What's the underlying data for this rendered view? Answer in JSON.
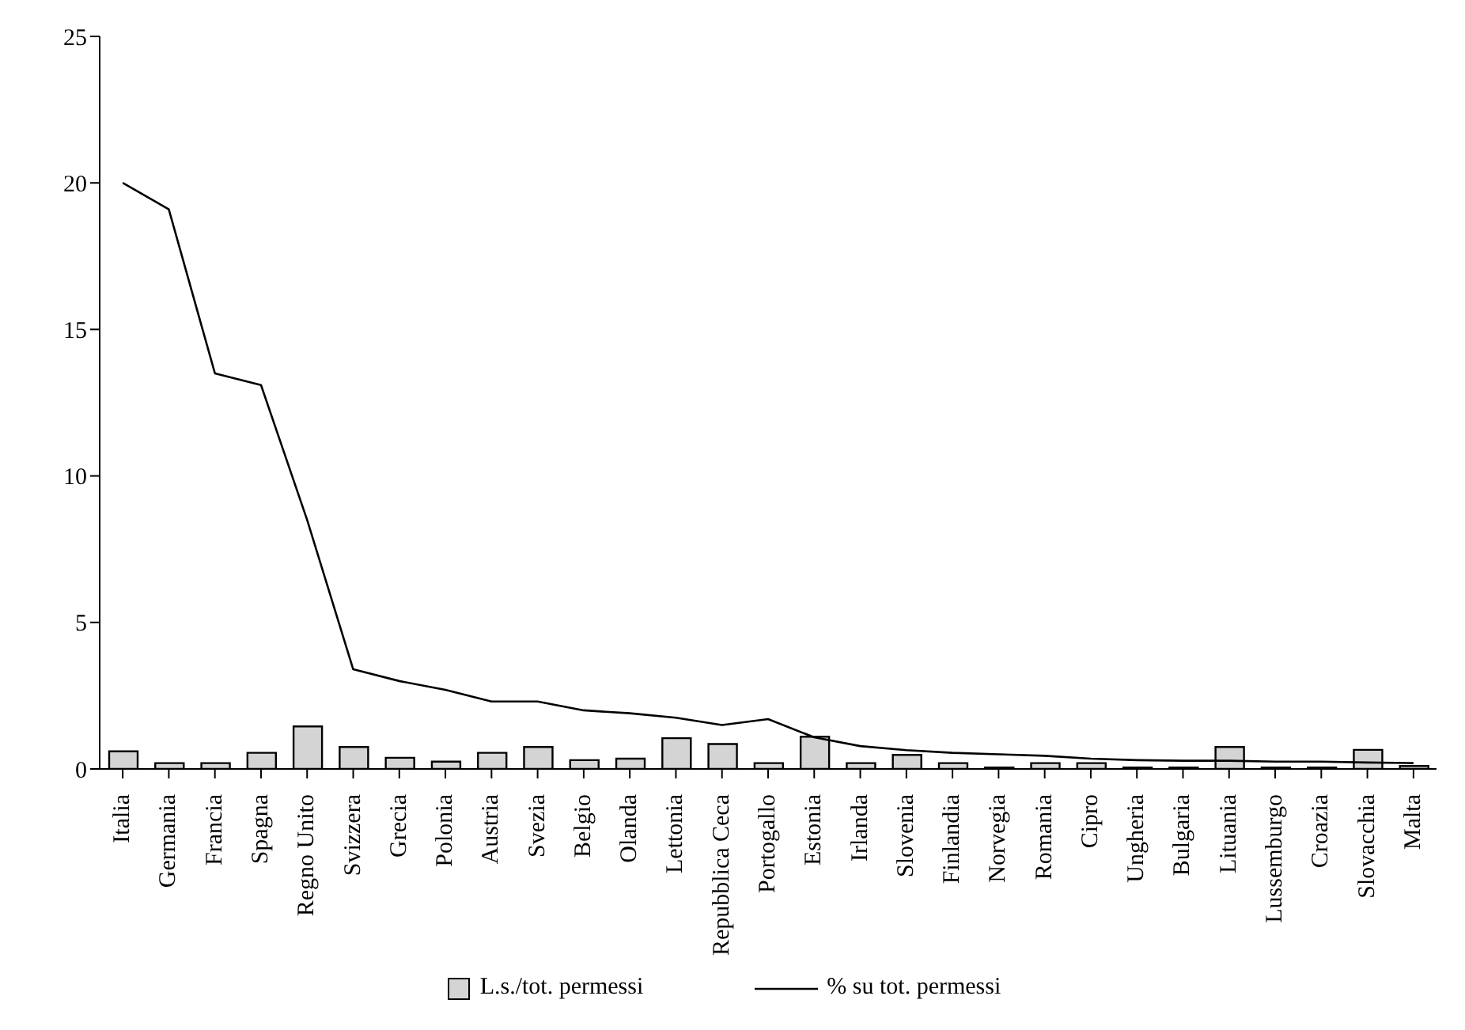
{
  "chart_data": {
    "type": "bar",
    "categories": [
      "Italia",
      "Germania",
      "Francia",
      "Spagna",
      "Regno Unito",
      "Svizzera",
      "Grecia",
      "Polonia",
      "Austria",
      "Svezia",
      "Belgio",
      "Olanda",
      "Lettonia",
      "Repubblica Ceca",
      "Portogallo",
      "Estonia",
      "Irlanda",
      "Slovenia",
      "Finlandia",
      "Norvegia",
      "Romania",
      "Cipro",
      "Ungheria",
      "Bulgaria",
      "Lituania",
      "Lussemburgo",
      "Croazia",
      "Slovacchia",
      "Malta"
    ],
    "series": [
      {
        "name": "L.s./tot. permessi",
        "color": "#d4d4d4",
        "values": [
          0.6,
          0.2,
          0.2,
          0.55,
          1.45,
          0.75,
          0.38,
          0.25,
          0.55,
          0.75,
          0.3,
          0.35,
          1.05,
          0.85,
          0.2,
          1.1,
          0.2,
          0.48,
          0.2,
          0.05,
          0.2,
          0.2,
          0.05,
          0.05,
          0.75,
          0.05,
          0.05,
          0.65,
          0.1
        ]
      },
      {
        "name": "% su tot. permessi",
        "type": "line",
        "color": "#000000",
        "values": [
          20,
          19.1,
          13.5,
          13.1,
          8.5,
          3.4,
          3.0,
          2.7,
          2.3,
          2.3,
          2.0,
          1.9,
          1.75,
          1.5,
          1.7,
          1.08,
          0.78,
          0.64,
          0.55,
          0.5,
          0.45,
          0.35,
          0.3,
          0.28,
          0.28,
          0.25,
          0.25,
          0.22,
          0.2
        ]
      }
    ],
    "ylim": [
      0,
      25
    ],
    "yticks": [
      0,
      5,
      10,
      15,
      20,
      25
    ],
    "grid": false,
    "legend": "bottom",
    "marker": "none"
  }
}
